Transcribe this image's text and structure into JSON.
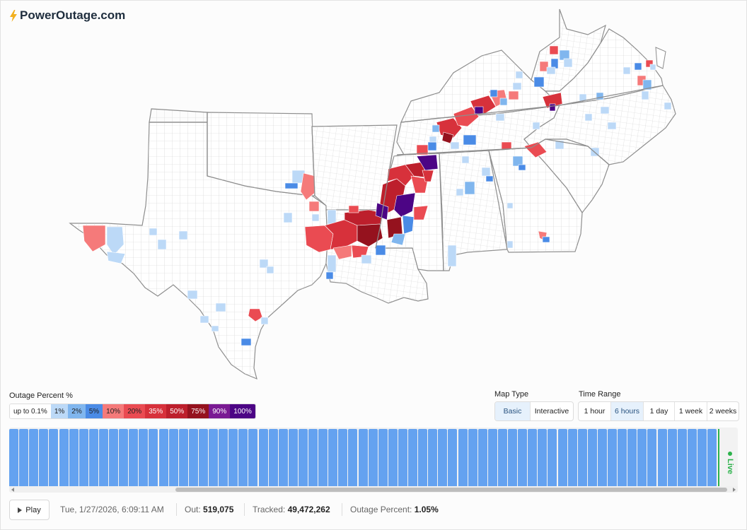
{
  "header": {
    "logo_text": "PowerOutage.com",
    "logo_icon": "lightning-bolt-icon",
    "logo_color": "#1e2d3d",
    "bolt_color": "#f2b01e"
  },
  "legend": {
    "title": "Outage Percent %",
    "items": [
      {
        "label": "up to 0.1%",
        "color": "#ffffff",
        "text": "#222222"
      },
      {
        "label": "1%",
        "color": "#bcd9f7",
        "text": "#222222"
      },
      {
        "label": "2%",
        "color": "#80b6ee",
        "text": "#222222"
      },
      {
        "label": "5%",
        "color": "#4a8be6",
        "text": "#222222"
      },
      {
        "label": "10%",
        "color": "#f57a7a",
        "text": "#222222"
      },
      {
        "label": "20%",
        "color": "#ea4b52",
        "text": "#222222"
      },
      {
        "label": "35%",
        "color": "#d7313b",
        "text": "#ffffff"
      },
      {
        "label": "50%",
        "color": "#bd1f2c",
        "text": "#ffffff"
      },
      {
        "label": "75%",
        "color": "#95121e",
        "text": "#ffffff"
      },
      {
        "label": "90%",
        "color": "#7a1a93",
        "text": "#ffffff"
      },
      {
        "label": "100%",
        "color": "#4c0585",
        "text": "#ffffff"
      }
    ]
  },
  "map_type": {
    "label": "Map Type",
    "options": [
      "Basic",
      "Interactive"
    ],
    "selected": "Basic"
  },
  "time_range": {
    "label": "Time Range",
    "options": [
      "1 hour",
      "6 hours",
      "1 day",
      "1 week",
      "2 weeks"
    ],
    "selected": "6 hours"
  },
  "timeline": {
    "live_label": "Live",
    "bar_color": "#64a2f0",
    "live_color": "#2cb24b"
  },
  "status": {
    "play_label": "Play",
    "timestamp": "Tue, 1/27/2026, 6:09:11 AM",
    "out_label": "Out:",
    "out_value": "519,075",
    "tracked_label": "Tracked:",
    "tracked_value": "49,472,262",
    "percent_label": "Outage Percent:",
    "percent_value": "1.05%"
  }
}
